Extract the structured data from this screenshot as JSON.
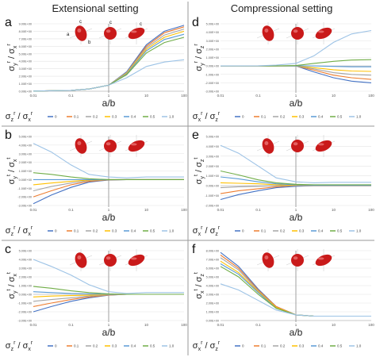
{
  "headers": {
    "left": "Extensional setting",
    "right": "Compressional setting"
  },
  "palette": [
    "#4472c4",
    "#ed7d31",
    "#a5a5a5",
    "#ffc000",
    "#5b9bd5",
    "#70ad47",
    "#9dc3e6"
  ],
  "legend_labels": [
    "0",
    "0.1",
    "0.2",
    "0.3",
    "0.4",
    "0.5",
    "1.0"
  ],
  "x_ticks": [
    "0.01",
    "0.1",
    "1",
    "10",
    "100"
  ],
  "x_axis_label": "a/b",
  "x_scale": "log",
  "icon_labels": [
    "a",
    "b",
    "c"
  ],
  "chart_data": [
    {
      "panel": "a",
      "type": "line",
      "xlabel": "a/b",
      "ylabel": "σ_y^r / σ_x^r",
      "legend_title": "σ_z^r / σ_x^r",
      "y_ticks": [
        "9.00E+00",
        "8.00E+00",
        "7.00E+00",
        "6.00E+00",
        "5.00E+00",
        "4.00E+00",
        "3.00E+00",
        "2.00E+00",
        "1.00E+00",
        "0.00E+00"
      ],
      "ylim": [
        0,
        9
      ],
      "x": [
        0.01,
        0.1,
        0.3,
        1,
        3,
        10,
        30,
        100
      ],
      "series": [
        {
          "name": "0",
          "values": [
            0.02,
            0.12,
            0.3,
            0.8,
            2.6,
            6.2,
            8.0,
            8.8
          ]
        },
        {
          "name": "0.1",
          "values": [
            0.02,
            0.12,
            0.3,
            0.8,
            2.5,
            6.0,
            7.8,
            8.6
          ]
        },
        {
          "name": "0.2",
          "values": [
            0.02,
            0.12,
            0.3,
            0.8,
            2.5,
            5.8,
            7.5,
            8.3
          ]
        },
        {
          "name": "0.3",
          "values": [
            0.02,
            0.12,
            0.3,
            0.8,
            2.4,
            5.6,
            7.2,
            8.0
          ]
        },
        {
          "name": "0.4",
          "values": [
            0.02,
            0.12,
            0.3,
            0.8,
            2.3,
            5.4,
            6.9,
            7.6
          ]
        },
        {
          "name": "0.5",
          "values": [
            0.02,
            0.12,
            0.3,
            0.8,
            2.2,
            5.1,
            6.5,
            7.2
          ]
        },
        {
          "name": "1.0",
          "values": [
            0.02,
            0.12,
            0.3,
            0.8,
            1.8,
            3.3,
            3.9,
            4.2
          ]
        }
      ]
    },
    {
      "panel": "b",
      "type": "line",
      "xlabel": "a/b",
      "ylabel": "σ_y^t / σ_x^t",
      "legend_title": "σ_z^r / σ_x^r",
      "y_ticks": [
        "5.00E+00",
        "4.00E+00",
        "3.00E+00",
        "2.00E+00",
        "1.00E+00",
        "0.00E+00",
        "-1.00E+00",
        "-2.00E+00",
        "-3.00E+00"
      ],
      "ylim": [
        -3,
        5
      ],
      "x": [
        0.01,
        0.03,
        0.1,
        0.3,
        1,
        3,
        10,
        100
      ],
      "series": [
        {
          "name": "0",
          "values": [
            -2.8,
            -1.8,
            -0.9,
            -0.3,
            -0.05,
            0.0,
            0.0,
            0.0
          ]
        },
        {
          "name": "0.1",
          "values": [
            -2.0,
            -1.3,
            -0.6,
            -0.2,
            -0.03,
            0.0,
            0.0,
            0.0
          ]
        },
        {
          "name": "0.2",
          "values": [
            -1.3,
            -0.8,
            -0.4,
            -0.1,
            -0.02,
            0.0,
            0.0,
            0.0
          ]
        },
        {
          "name": "0.3",
          "values": [
            -0.6,
            -0.4,
            -0.2,
            -0.05,
            0.0,
            0.0,
            0.0,
            0.0
          ]
        },
        {
          "name": "0.4",
          "values": [
            0.0,
            0.0,
            0.0,
            0.0,
            0.0,
            0.0,
            0.0,
            0.0
          ]
        },
        {
          "name": "0.5",
          "values": [
            0.8,
            0.6,
            0.3,
            0.1,
            0.0,
            0.0,
            0.0,
            0.0
          ]
        },
        {
          "name": "1.0",
          "values": [
            4.2,
            3.2,
            1.7,
            0.6,
            0.3,
            0.2,
            0.3,
            0.3
          ]
        }
      ]
    },
    {
      "panel": "c",
      "type": "line",
      "xlabel": "a/b",
      "ylabel": "σ_y^t / σ_x^t",
      "legend_title": "σ_z^r / σ_x^r",
      "y_ticks": [
        "5.00E+00",
        "4.00E+00",
        "3.00E+00",
        "2.00E+00",
        "1.00E+00",
        "0.00E+00",
        "-1.00E+00",
        "-2.00E+00",
        "-3.00E+00"
      ],
      "ylim": [
        -3,
        5
      ],
      "x": [
        0.01,
        0.03,
        0.1,
        0.3,
        1,
        3,
        10,
        100
      ],
      "series": [
        {
          "name": "0",
          "values": [
            -2.0,
            -1.4,
            -0.8,
            -0.4,
            -0.1,
            0.0,
            0.0,
            0.0
          ]
        },
        {
          "name": "0.1",
          "values": [
            -1.4,
            -1.0,
            -0.6,
            -0.3,
            -0.08,
            0.0,
            0.0,
            0.0
          ]
        },
        {
          "name": "0.2",
          "values": [
            -0.8,
            -0.6,
            -0.4,
            -0.2,
            -0.05,
            0.0,
            0.0,
            0.0
          ]
        },
        {
          "name": "0.3",
          "values": [
            -0.3,
            -0.2,
            -0.15,
            -0.1,
            -0.02,
            0.0,
            0.0,
            0.0
          ]
        },
        {
          "name": "0.4",
          "values": [
            0.3,
            0.2,
            0.1,
            0.05,
            0.0,
            0.0,
            0.0,
            0.0
          ]
        },
        {
          "name": "0.5",
          "values": [
            0.9,
            0.7,
            0.4,
            0.2,
            0.05,
            0.0,
            0.0,
            0.0
          ]
        },
        {
          "name": "1.0",
          "values": [
            4.0,
            3.2,
            2.2,
            1.1,
            0.3,
            0.1,
            0.2,
            0.2
          ]
        }
      ]
    },
    {
      "panel": "d",
      "type": "line",
      "xlabel": "a/b",
      "ylabel": "σ_y^r / σ_z^r",
      "legend_title": "σ_x^r / σ_z^r",
      "y_ticks": [
        "5.00E+00",
        "4.00E+00",
        "3.00E+00",
        "2.00E+00",
        "1.00E+00",
        "0.00E+00",
        "-1.00E+00",
        "-2.00E+00",
        "-3.00E+00"
      ],
      "ylim": [
        -3,
        5
      ],
      "x": [
        0.01,
        0.1,
        0.3,
        1,
        3,
        10,
        30,
        100
      ],
      "series": [
        {
          "name": "0",
          "values": [
            0.0,
            0.0,
            0.0,
            0.0,
            -0.7,
            -1.4,
            -1.8,
            -2.0
          ]
        },
        {
          "name": "0.1",
          "values": [
            0.0,
            0.0,
            0.0,
            0.0,
            -0.5,
            -1.1,
            -1.4,
            -1.6
          ]
        },
        {
          "name": "0.2",
          "values": [
            0.0,
            0.0,
            0.0,
            0.0,
            -0.35,
            -0.8,
            -1.0,
            -1.1
          ]
        },
        {
          "name": "0.3",
          "values": [
            0.0,
            0.0,
            0.0,
            0.0,
            -0.2,
            -0.45,
            -0.6,
            -0.65
          ]
        },
        {
          "name": "0.4",
          "values": [
            0.0,
            0.0,
            0.0,
            0.0,
            0.0,
            -0.05,
            -0.1,
            -0.1
          ]
        },
        {
          "name": "0.5",
          "values": [
            0.0,
            0.0,
            0.0,
            0.05,
            0.3,
            0.55,
            0.7,
            0.75
          ]
        },
        {
          "name": "1.0",
          "values": [
            0.0,
            0.02,
            0.1,
            0.3,
            1.2,
            2.8,
            3.8,
            4.2
          ]
        }
      ]
    },
    {
      "panel": "e",
      "type": "line",
      "xlabel": "a/b",
      "ylabel": "σ_y^t / σ_z^t",
      "legend_title": "σ_x^r / σ_z^r",
      "y_ticks": [
        "5.00E+00",
        "4.00E+00",
        "3.00E+00",
        "2.00E+00",
        "1.00E+00",
        "0.00E+00",
        "-1.00E+00",
        "-2.00E+00"
      ],
      "ylim": [
        -2,
        5
      ],
      "x": [
        0.01,
        0.03,
        0.1,
        0.3,
        1,
        3,
        10,
        100
      ],
      "series": [
        {
          "name": "0",
          "values": [
            -1.4,
            -0.9,
            -0.5,
            -0.2,
            -0.05,
            0.0,
            0.0,
            0.0
          ]
        },
        {
          "name": "0.1",
          "values": [
            -0.8,
            -0.5,
            -0.3,
            -0.1,
            0.0,
            0.0,
            0.0,
            0.0
          ]
        },
        {
          "name": "0.2",
          "values": [
            -0.2,
            -0.1,
            -0.05,
            0.0,
            0.0,
            0.0,
            0.0,
            0.0
          ]
        },
        {
          "name": "0.3",
          "values": [
            0.3,
            0.25,
            0.2,
            0.1,
            0.05,
            0.05,
            0.05,
            0.05
          ]
        },
        {
          "name": "0.4",
          "values": [
            0.9,
            0.7,
            0.4,
            0.2,
            0.1,
            0.05,
            0.05,
            0.05
          ]
        },
        {
          "name": "0.5",
          "values": [
            1.5,
            1.1,
            0.6,
            0.3,
            0.15,
            0.1,
            0.1,
            0.1
          ]
        },
        {
          "name": "1.0",
          "values": [
            4.1,
            3.3,
            2.0,
            0.8,
            0.4,
            0.3,
            0.35,
            0.35
          ]
        }
      ]
    },
    {
      "panel": "f",
      "type": "line",
      "xlabel": "a/b",
      "ylabel": "σ_x^t / σ_z^t",
      "legend_title": "σ_x^r / σ_z^r",
      "y_ticks": [
        "8.00E+00",
        "7.00E+00",
        "6.00E+00",
        "5.00E+00",
        "4.00E+00",
        "3.00E+00",
        "2.00E+00",
        "1.00E+00",
        "0.00E+00"
      ],
      "ylim": [
        0,
        8
      ],
      "x": [
        0.01,
        0.03,
        0.1,
        0.3,
        1,
        3,
        10,
        100
      ],
      "series": [
        {
          "name": "0",
          "values": [
            7.8,
            6.2,
            3.6,
            1.6,
            0.65,
            0.5,
            0.5,
            0.5
          ]
        },
        {
          "name": "0.1",
          "values": [
            7.5,
            6.0,
            3.5,
            1.6,
            0.65,
            0.5,
            0.5,
            0.5
          ]
        },
        {
          "name": "0.2",
          "values": [
            7.2,
            5.8,
            3.4,
            1.5,
            0.65,
            0.5,
            0.5,
            0.5
          ]
        },
        {
          "name": "0.3",
          "values": [
            6.8,
            5.5,
            3.3,
            1.5,
            0.65,
            0.5,
            0.5,
            0.5
          ]
        },
        {
          "name": "0.4",
          "values": [
            6.5,
            5.3,
            3.2,
            1.4,
            0.65,
            0.5,
            0.5,
            0.5
          ]
        },
        {
          "name": "0.5",
          "values": [
            6.2,
            5.0,
            3.0,
            1.4,
            0.65,
            0.5,
            0.5,
            0.5
          ]
        },
        {
          "name": "1.0",
          "values": [
            4.2,
            3.5,
            2.3,
            1.2,
            0.65,
            0.5,
            0.5,
            0.5
          ]
        }
      ]
    }
  ]
}
